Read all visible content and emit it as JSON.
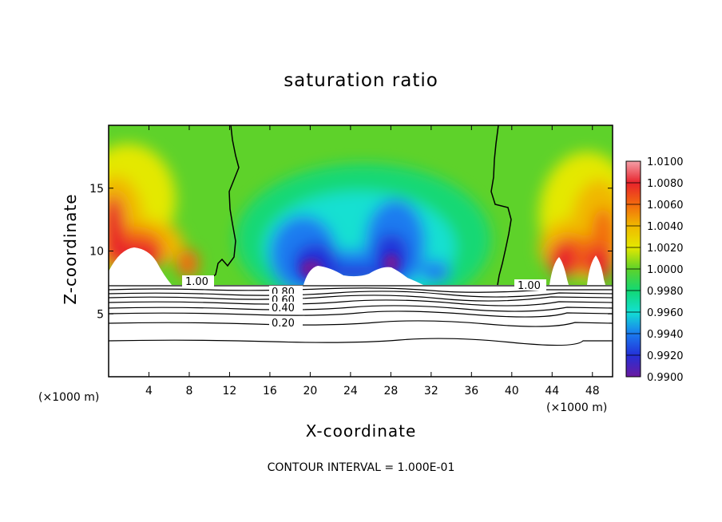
{
  "chart_data": {
    "type": "heatmap",
    "title": "saturation ratio",
    "xlabel": "X-coordinate",
    "ylabel": "Z-coordinate",
    "x_unit": "(×1000 m)",
    "y_unit": "(×1000 m)",
    "xlim": [
      0,
      50
    ],
    "ylim": [
      0,
      20
    ],
    "x_ticks": [
      4,
      8,
      12,
      16,
      20,
      24,
      28,
      32,
      36,
      40,
      44,
      48
    ],
    "y_ticks": [
      5,
      10,
      15
    ],
    "colorbar": {
      "levels": [
        "1.0100",
        "1.0080",
        "1.0060",
        "1.0040",
        "1.0020",
        "1.0000",
        "0.9980",
        "0.9960",
        "0.9940",
        "0.9920",
        "0.9900"
      ],
      "colors": [
        "#f4a0a8",
        "#e8232c",
        "#f26a0e",
        "#f0b800",
        "#e4e800",
        "#5ed22a",
        "#12d874",
        "#12e0d2",
        "#1a7cf0",
        "#2430d8",
        "#6a1aa0"
      ]
    },
    "contour_labels": [
      "1.00",
      "1.00",
      "0.80",
      "0.60",
      "0.40",
      "0.20"
    ],
    "contour_interval": "CONTOUR INTERVAL = 1.000E-01",
    "notes": "Field shown above ~7.5 km; below, contour lines of values 0.20-1.00"
  }
}
